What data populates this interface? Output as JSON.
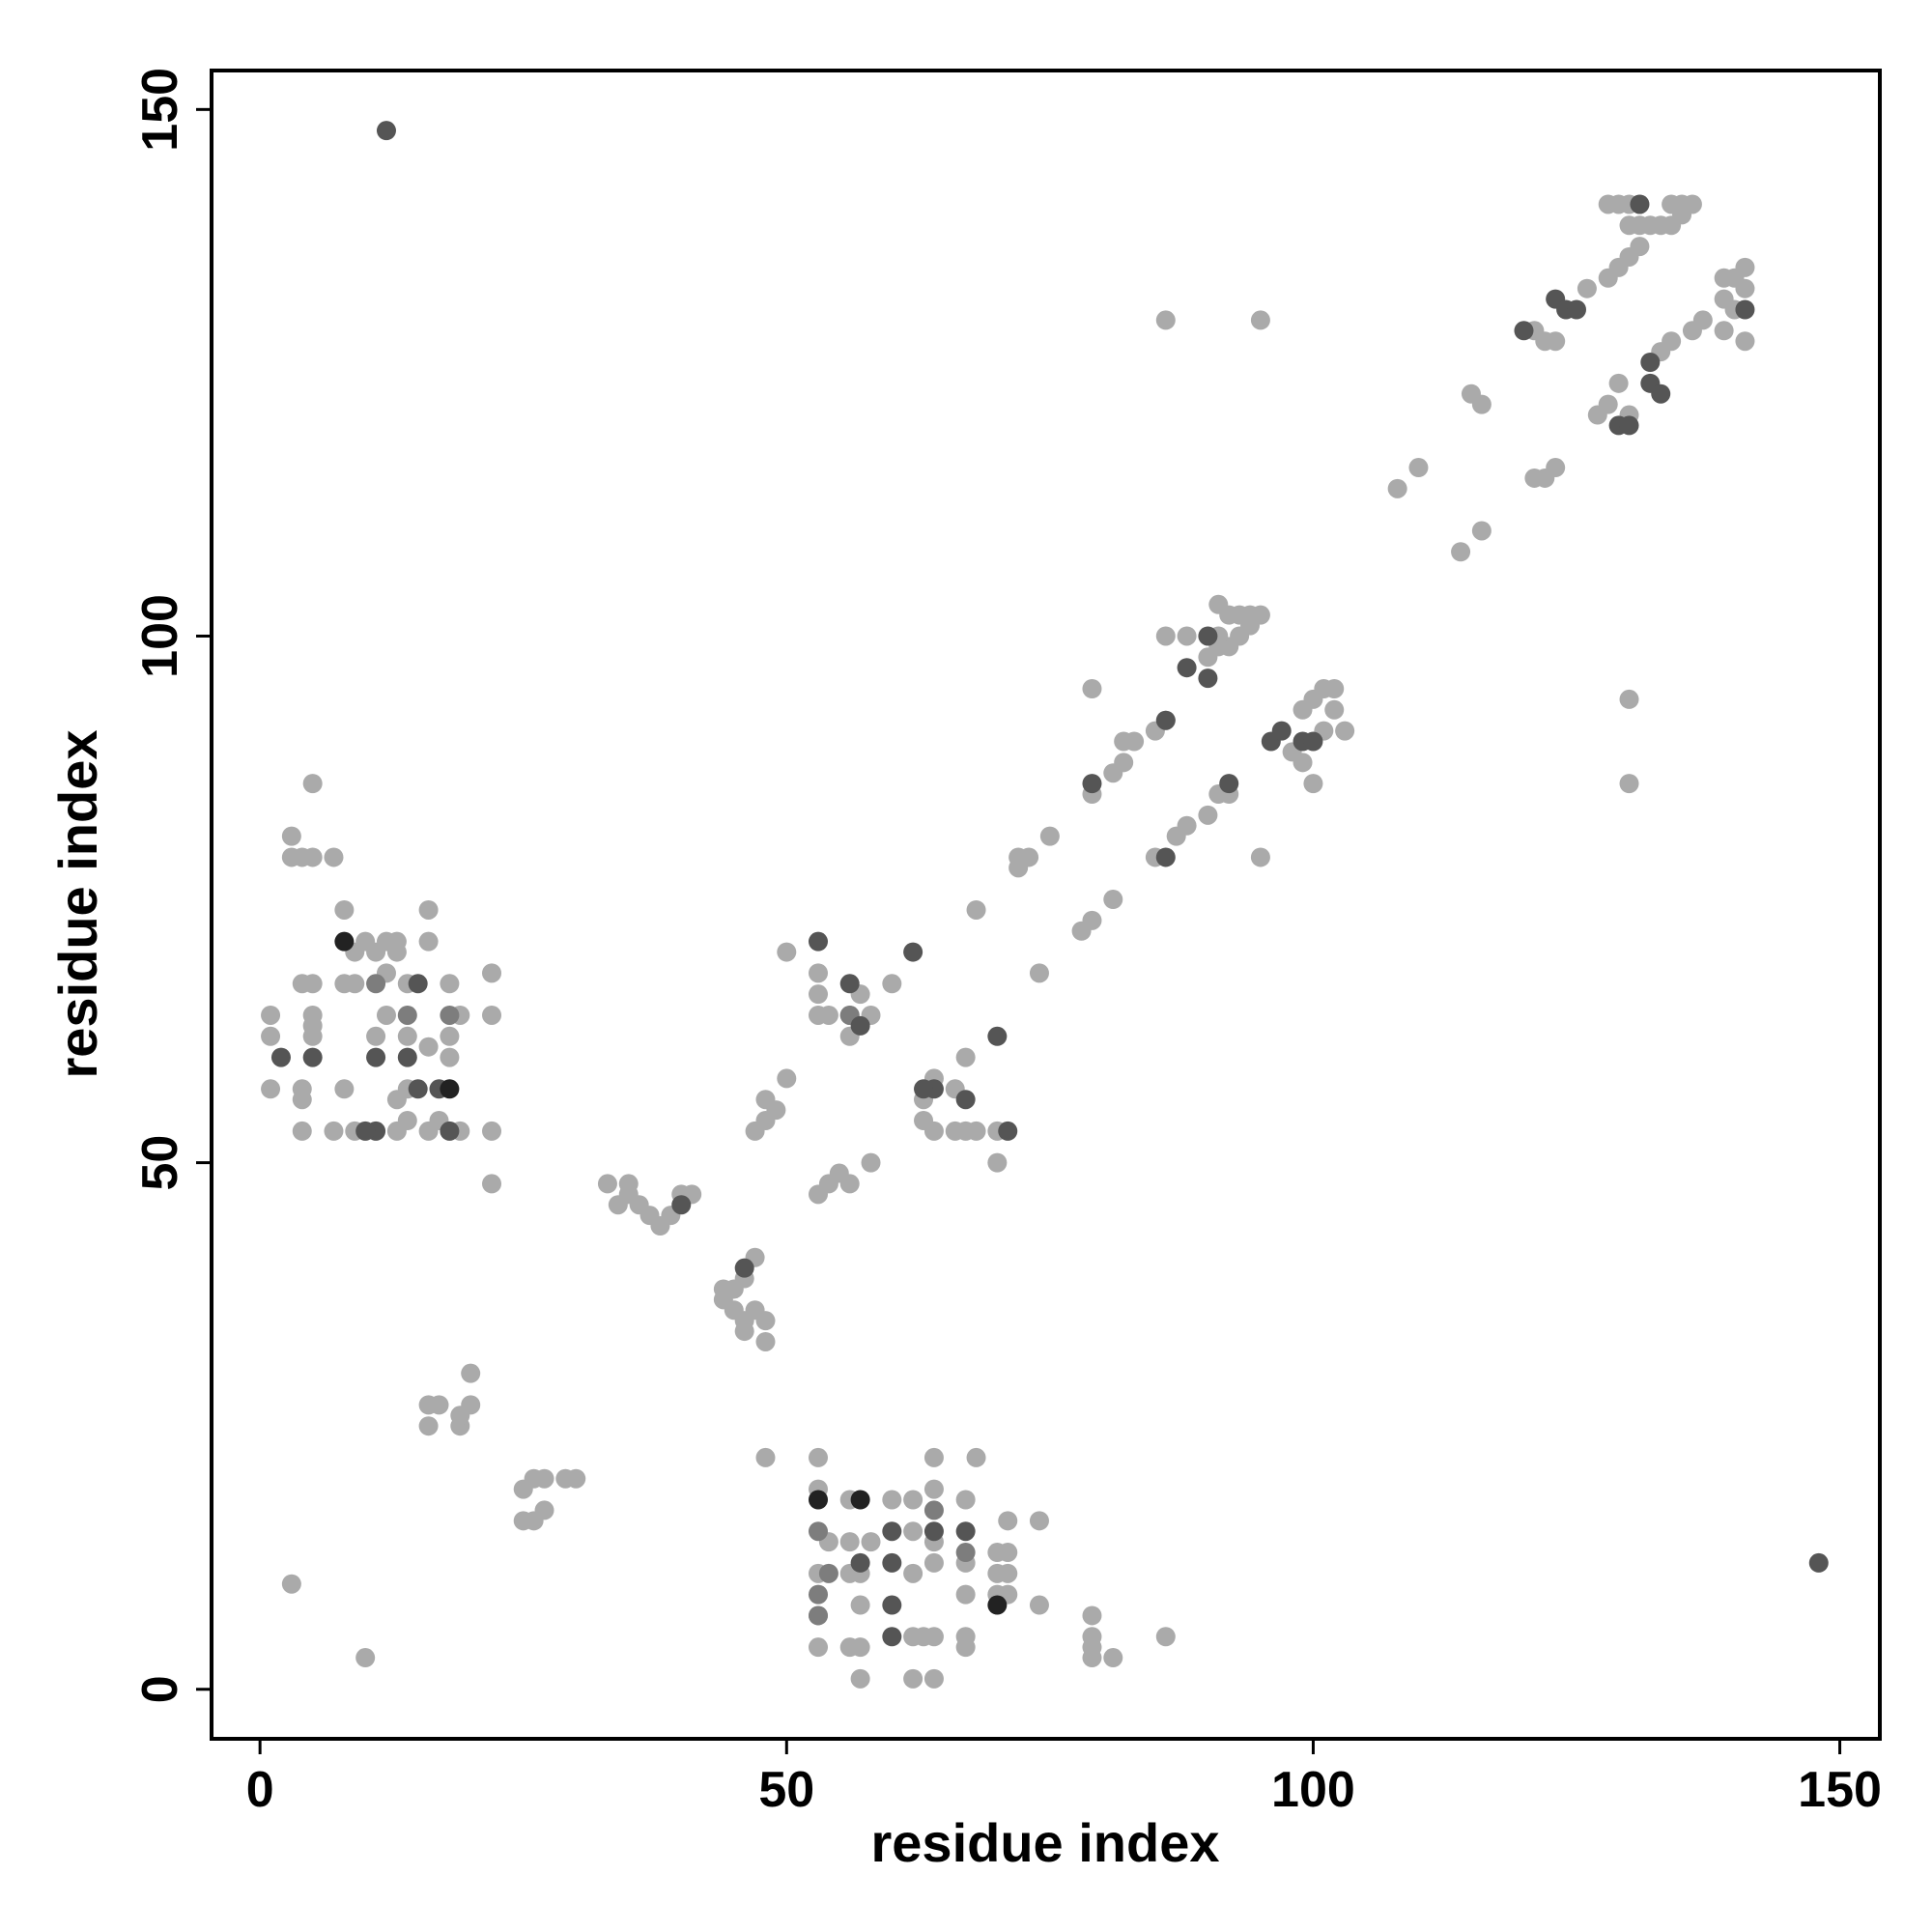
{
  "chart_data": {
    "type": "scatter",
    "xlabel": "residue index",
    "ylabel": "residue index",
    "xlim": [
      -4.6,
      153.8
    ],
    "ylim": [
      -4.7,
      153.7
    ],
    "xticks": [
      0,
      50,
      100,
      150
    ],
    "yticks": [
      0,
      50,
      100,
      150
    ],
    "series": [
      {
        "color": "#aaaaaa",
        "x": [
          128,
          129,
          130,
          131,
          134,
          135,
          136,
          130,
          131,
          132,
          133,
          134,
          135,
          131,
          130,
          129,
          128,
          126,
          121,
          122,
          123,
          139,
          140,
          141,
          141,
          139,
          140,
          141,
          139,
          137,
          136,
          134,
          133,
          129,
          128,
          127,
          130,
          115,
          116,
          123,
          122,
          121,
          110,
          108,
          116,
          114,
          86,
          95,
          130,
          130,
          86,
          88,
          91,
          92,
          93,
          94,
          95,
          94,
          93,
          92,
          91,
          90,
          91,
          99,
          100,
          101,
          102,
          102,
          103,
          101,
          99,
          100,
          98,
          79,
          82,
          83,
          85,
          86,
          82,
          81,
          79,
          72,
          73,
          72,
          75,
          68,
          79,
          78,
          81,
          74,
          85,
          87,
          88,
          90,
          91,
          92,
          95,
          50,
          53,
          53,
          54,
          56,
          57,
          58,
          56,
          60,
          53,
          50,
          48,
          49,
          48,
          47,
          63,
          64,
          66,
          67,
          66,
          67,
          68,
          70,
          63,
          64,
          70,
          58,
          56,
          55,
          54,
          53,
          33,
          35,
          34,
          36,
          37,
          38,
          39,
          41,
          40,
          35,
          47,
          46,
          45,
          44,
          45,
          46,
          47,
          48,
          48,
          46,
          44,
          16,
          17,
          16,
          19,
          20,
          20,
          19,
          25,
          26,
          27,
          29,
          30,
          26,
          27,
          25,
          3,
          10,
          48,
          53,
          64,
          68,
          53,
          56,
          60,
          62,
          64,
          67,
          54,
          56,
          58,
          62,
          64,
          53,
          56,
          57,
          62,
          64,
          67,
          67,
          70,
          71,
          70,
          71,
          70,
          71,
          74,
          74,
          71,
          57,
          53,
          53,
          56,
          57,
          62,
          63,
          64,
          67,
          67,
          57,
          62,
          64,
          79,
          79,
          79,
          79,
          81,
          86,
          5,
          3,
          3,
          4,
          5,
          7,
          8,
          4,
          5,
          8,
          9,
          10,
          9,
          11,
          12,
          13,
          13,
          12,
          14,
          16,
          16,
          22,
          22,
          1,
          1,
          5,
          5,
          5,
          8,
          4,
          4,
          12,
          11,
          14,
          18,
          18,
          19,
          16,
          18,
          14,
          13,
          22,
          22,
          1,
          4,
          7,
          9,
          13,
          16,
          17,
          19,
          14
        ],
        "values": [
          141,
          141,
          141,
          141,
          141,
          141,
          141,
          139,
          139,
          139,
          139,
          139,
          140,
          137,
          136,
          135,
          134,
          133,
          129,
          128,
          128,
          134,
          134,
          135,
          133,
          132,
          131,
          128,
          129,
          130,
          129,
          128,
          127,
          124,
          122,
          121,
          121,
          123,
          122,
          116,
          115,
          115,
          116,
          114,
          110,
          108,
          130,
          130,
          94,
          86,
          100,
          100,
          103,
          102,
          102,
          102,
          102,
          101,
          100,
          99,
          100,
          98,
          99,
          93,
          94,
          95,
          95,
          93,
          91,
          91,
          88,
          86,
          89,
          95,
          90,
          90,
          91,
          92,
          88,
          87,
          85,
          79,
          79,
          78,
          81,
          74,
          73,
          72,
          75,
          68,
          79,
          81,
          82,
          83,
          85,
          85,
          79,
          70,
          68,
          66,
          64,
          64,
          66,
          64,
          62,
          67,
          64,
          58,
          56,
          55,
          54,
          53,
          56,
          58,
          57,
          60,
          53,
          53,
          53,
          53,
          54,
          53,
          50,
          50,
          48,
          49,
          48,
          47,
          48,
          48,
          46,
          46,
          45,
          44,
          45,
          47,
          47,
          47,
          41,
          39,
          38,
          37,
          36,
          35,
          36,
          35,
          33,
          34,
          38,
          27,
          27,
          25,
          25,
          30,
          27,
          26,
          19,
          20,
          20,
          20,
          20,
          16,
          17,
          16,
          10,
          3,
          22,
          22,
          22,
          22,
          19,
          18,
          18,
          18,
          19,
          18,
          14,
          14,
          14,
          15,
          14,
          11,
          11,
          11,
          11,
          12,
          12,
          9,
          13,
          13,
          11,
          11,
          9,
          9,
          8,
          16,
          16,
          8,
          7,
          4,
          4,
          4,
          5,
          5,
          5,
          5,
          4,
          1,
          1,
          1,
          7,
          5,
          4,
          3,
          3,
          5,
          86,
          81,
          79,
          79,
          79,
          79,
          74,
          67,
          67,
          67,
          67,
          71,
          70,
          70,
          71,
          70,
          71,
          68,
          67,
          74,
          71,
          68,
          64,
          64,
          62,
          64,
          63,
          62,
          57,
          57,
          56,
          64,
          62,
          62,
          67,
          62,
          64,
          61,
          60,
          57,
          56,
          53,
          48,
          57,
          53,
          53,
          53,
          53,
          53,
          54,
          53,
          54
        ]
      },
      {
        "color": "#7d7d7d",
        "x": [
          53,
          53,
          54,
          67,
          64,
          11,
          14,
          18,
          56,
          53
        ],
        "values": [
          15,
          9,
          11,
          13,
          17,
          67,
          64,
          64,
          64,
          7
        ]
      },
      {
        "color": "#555555",
        "x": [
          12,
          148,
          131,
          120,
          123,
          124,
          125,
          141,
          132,
          132,
          133,
          129,
          130,
          90,
          88,
          90,
          86,
          96,
          97,
          99,
          100,
          79,
          92,
          86,
          62,
          53,
          56,
          57,
          70,
          64,
          63,
          67,
          71,
          40,
          46,
          15,
          11,
          14,
          17,
          15,
          18,
          11,
          10,
          2,
          5,
          60,
          67,
          57,
          60,
          64,
          60,
          60
        ],
        "values": [
          148,
          12,
          141,
          129,
          132,
          131,
          131,
          131,
          126,
          124,
          123,
          120,
          120,
          100,
          97,
          96,
          92,
          90,
          91,
          90,
          90,
          86,
          86,
          79,
          70,
          71,
          67,
          63,
          62,
          57,
          57,
          56,
          53,
          46,
          40,
          67,
          60,
          60,
          57,
          57,
          53,
          53,
          53,
          60,
          60,
          15,
          15,
          12,
          12,
          15,
          8,
          5
        ]
      },
      {
        "color": "#222222",
        "x": [
          8,
          18,
          57,
          70,
          53
        ],
        "values": [
          71,
          57,
          18,
          8,
          18
        ]
      }
    ]
  }
}
